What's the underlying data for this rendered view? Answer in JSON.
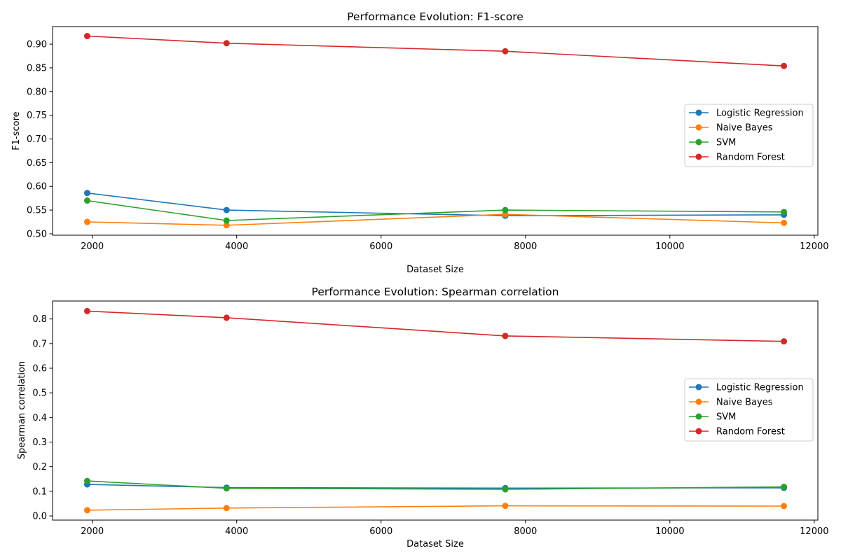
{
  "charts": [
    {
      "title": "Performance Evolution: F1-score",
      "xlabel": "Dataset Size",
      "ylabel": "F1-score",
      "xticks": [
        2000,
        4000,
        6000,
        8000,
        10000,
        12000
      ],
      "yticks": [
        "0.50",
        "0.55",
        "0.60",
        "0.65",
        "0.70",
        "0.75",
        "0.80",
        "0.85",
        "0.90"
      ],
      "legend": [
        "Logistic Regression",
        "Naive Bayes",
        "SVM",
        "Random Forest"
      ]
    },
    {
      "title": "Performance Evolution: Spearman correlation",
      "xlabel": "Dataset Size",
      "ylabel": "Spearman correlation",
      "xticks": [
        2000,
        4000,
        6000,
        8000,
        10000,
        12000
      ],
      "yticks": [
        "0.0",
        "0.1",
        "0.2",
        "0.3",
        "0.4",
        "0.5",
        "0.6",
        "0.7",
        "0.8"
      ],
      "legend": [
        "Logistic Regression",
        "Naive Bayes",
        "SVM",
        "Random Forest"
      ]
    }
  ],
  "chart_data": [
    {
      "type": "line",
      "title": "Performance Evolution: F1-score",
      "xlabel": "Dataset Size",
      "ylabel": "F1-score",
      "x": [
        1930,
        3860,
        7720,
        11580
      ],
      "xlim": [
        1450,
        12050
      ],
      "ylim": [
        0.497,
        0.937
      ],
      "grid": false,
      "legend_position": "center-right",
      "series": [
        {
          "name": "Logistic Regression",
          "color": "#1f77b4",
          "values": [
            0.586,
            0.55,
            0.538,
            0.54
          ]
        },
        {
          "name": "Naive Bayes",
          "color": "#ff7f0e",
          "values": [
            0.525,
            0.518,
            0.541,
            0.523
          ]
        },
        {
          "name": "SVM",
          "color": "#2ca02c",
          "values": [
            0.57,
            0.528,
            0.55,
            0.546
          ]
        },
        {
          "name": "Random Forest",
          "color": "#d62728",
          "values": [
            0.917,
            0.902,
            0.885,
            0.854
          ]
        }
      ]
    },
    {
      "type": "line",
      "title": "Performance Evolution: Spearman correlation",
      "xlabel": "Dataset Size",
      "ylabel": "Spearman correlation",
      "x": [
        1930,
        3860,
        7720,
        11580
      ],
      "xlim": [
        1450,
        12050
      ],
      "ylim": [
        -0.017,
        0.873
      ],
      "grid": false,
      "legend_position": "center-right",
      "series": [
        {
          "name": "Logistic Regression",
          "color": "#1f77b4",
          "values": [
            0.128,
            0.115,
            0.113,
            0.114
          ]
        },
        {
          "name": "Naive Bayes",
          "color": "#ff7f0e",
          "values": [
            0.023,
            0.032,
            0.041,
            0.04
          ]
        },
        {
          "name": "SVM",
          "color": "#2ca02c",
          "values": [
            0.142,
            0.112,
            0.108,
            0.118
          ]
        },
        {
          "name": "Random Forest",
          "color": "#d62728",
          "values": [
            0.832,
            0.805,
            0.731,
            0.709
          ]
        }
      ]
    }
  ]
}
